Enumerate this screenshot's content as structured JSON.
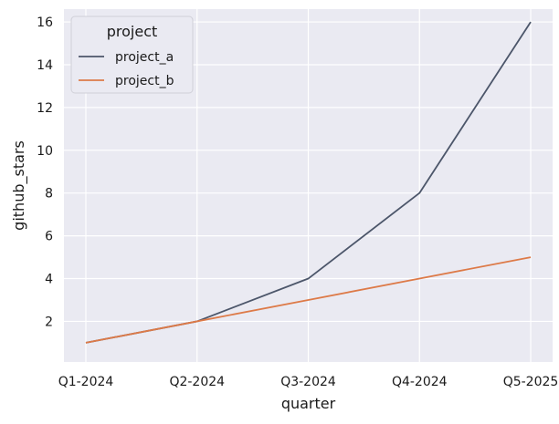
{
  "chart_data": {
    "type": "line",
    "x": [
      "Q1-2024",
      "Q2-2024",
      "Q3-2024",
      "Q4-2024",
      "Q5-2025"
    ],
    "xlabel": "quarter",
    "ylabel": "github_stars",
    "ylim": [
      0.1,
      16.6
    ],
    "yticks": [
      2,
      4,
      6,
      8,
      10,
      12,
      14,
      16
    ],
    "grid": true,
    "legend": {
      "title": "project",
      "placement": "top-left"
    },
    "series": [
      {
        "name": "project_a",
        "color": "#4c566a",
        "values": [
          1,
          2,
          4,
          8,
          16
        ]
      },
      {
        "name": "project_b",
        "color": "#dd7a48",
        "values": [
          1,
          2,
          3,
          4,
          5
        ]
      }
    ],
    "plot_background": "#eaeaf2",
    "grid_color": "#ffffff"
  }
}
